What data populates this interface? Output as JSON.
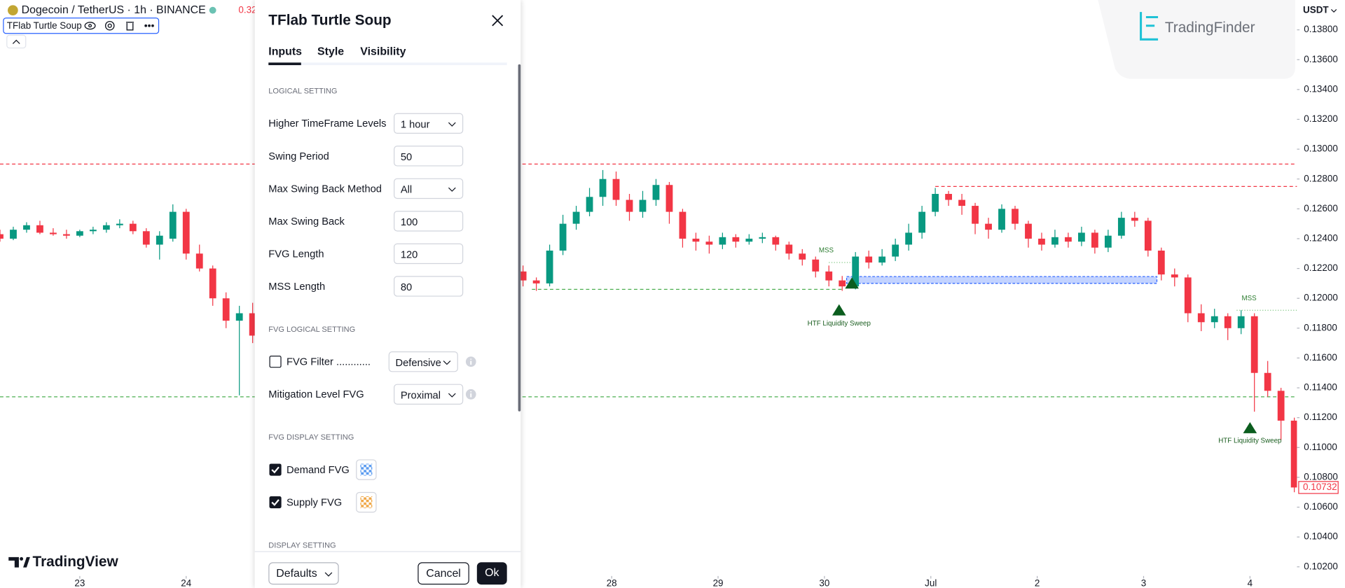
{
  "header": {
    "symbol": "Dogecoin / TetherUS · 1h · BINANCE",
    "price_peek": "0.32",
    "indicator": "TFlab Turtle Soup"
  },
  "watermarks": {
    "tradingview": "TradingView",
    "tradingfinder": "TradingFinder"
  },
  "chart": {
    "currency": "USDT",
    "ylim": [
      0.1015,
      0.14
    ],
    "yticks": [
      {
        "value": 0.102,
        "label": "0.10200"
      },
      {
        "value": 0.104,
        "label": "0.10400"
      },
      {
        "value": 0.106,
        "label": "0.10600"
      },
      {
        "value": 0.108,
        "label": "0.10800"
      },
      {
        "value": 0.11,
        "label": "0.11000"
      },
      {
        "value": 0.112,
        "label": "0.11200"
      },
      {
        "value": 0.114,
        "label": "0.11400"
      },
      {
        "value": 0.116,
        "label": "0.11600"
      },
      {
        "value": 0.118,
        "label": "0.11800"
      },
      {
        "value": 0.12,
        "label": "0.12000"
      },
      {
        "value": 0.122,
        "label": "0.12200"
      },
      {
        "value": 0.124,
        "label": "0.12400"
      },
      {
        "value": 0.126,
        "label": "0.12600"
      },
      {
        "value": 0.128,
        "label": "0.12800"
      },
      {
        "value": 0.13,
        "label": "0.13000"
      },
      {
        "value": 0.132,
        "label": "0.13200"
      },
      {
        "value": 0.134,
        "label": "0.13400"
      },
      {
        "value": 0.136,
        "label": "0.13600"
      },
      {
        "value": 0.138,
        "label": "0.13800"
      }
    ],
    "xlim": [
      -18,
      274.6
    ],
    "xticks": [
      {
        "value": 0,
        "label": "23"
      },
      {
        "value": 24,
        "label": "24"
      },
      {
        "value": 120,
        "label": "28"
      },
      {
        "value": 144,
        "label": "29"
      },
      {
        "value": 168,
        "label": "30"
      },
      {
        "value": 192,
        "label": "Jul"
      },
      {
        "value": 216,
        "label": "2"
      },
      {
        "value": 240,
        "label": "3"
      },
      {
        "value": 264,
        "label": "4"
      }
    ],
    "up_color": "#089981",
    "down_color": "#f23645",
    "x": [
      -18,
      -15,
      -12,
      -9,
      -6,
      -3,
      0,
      3,
      6,
      9,
      12,
      15,
      18,
      21,
      24,
      27,
      30,
      33,
      36,
      39,
      100,
      103,
      106,
      109,
      112,
      115,
      118,
      121,
      124,
      127,
      130,
      133,
      136,
      139,
      142,
      145,
      148,
      151,
      154,
      157,
      160,
      163,
      166,
      169,
      172,
      175,
      178,
      181,
      184,
      187,
      190,
      193,
      196,
      199,
      202,
      205,
      208,
      211,
      214,
      217,
      220,
      223,
      226,
      229,
      232,
      235,
      238,
      241,
      244,
      247,
      250,
      253,
      256,
      259,
      262,
      265,
      268,
      271,
      274
    ],
    "ohlc": [
      [
        0.1243,
        0.1246,
        0.1238,
        0.124
      ],
      [
        0.124,
        0.1248,
        0.1239,
        0.1246
      ],
      [
        0.1246,
        0.1251,
        0.1244,
        0.1249
      ],
      [
        0.1249,
        0.1252,
        0.1243,
        0.1244
      ],
      [
        0.1244,
        0.1247,
        0.1242,
        0.1243
      ],
      [
        0.1243,
        0.1246,
        0.124,
        0.1242
      ],
      [
        0.1242,
        0.1246,
        0.1241,
        0.1245
      ],
      [
        0.1245,
        0.1248,
        0.1243,
        0.1246
      ],
      [
        0.1246,
        0.1251,
        0.1244,
        0.1249
      ],
      [
        0.1249,
        0.1253,
        0.1247,
        0.125
      ],
      [
        0.125,
        0.1252,
        0.1243,
        0.1245
      ],
      [
        0.1245,
        0.1247,
        0.1234,
        0.1236
      ],
      [
        0.1236,
        0.1245,
        0.1226,
        0.1242
      ],
      [
        0.124,
        0.1263,
        0.1238,
        0.1258
      ],
      [
        0.1258,
        0.126,
        0.1226,
        0.123
      ],
      [
        0.123,
        0.1236,
        0.1218,
        0.122
      ],
      [
        0.122,
        0.1222,
        0.1195,
        0.12
      ],
      [
        0.12,
        0.1204,
        0.118,
        0.1185
      ],
      [
        0.1185,
        0.1195,
        0.1135,
        0.119
      ],
      [
        0.119,
        0.1197,
        0.117,
        0.1175
      ],
      [
        0.1218,
        0.1222,
        0.1208,
        0.1212
      ],
      [
        0.1212,
        0.1214,
        0.1205,
        0.121
      ],
      [
        0.121,
        0.1236,
        0.1208,
        0.1232
      ],
      [
        0.1232,
        0.1256,
        0.1229,
        0.125
      ],
      [
        0.125,
        0.1262,
        0.1246,
        0.1258
      ],
      [
        0.1258,
        0.1274,
        0.1255,
        0.1268
      ],
      [
        0.1268,
        0.1286,
        0.1262,
        0.128
      ],
      [
        0.128,
        0.1285,
        0.1262,
        0.1266
      ],
      [
        0.1266,
        0.127,
        0.1252,
        0.1258
      ],
      [
        0.1258,
        0.1272,
        0.1254,
        0.1266
      ],
      [
        0.1266,
        0.128,
        0.1262,
        0.1276
      ],
      [
        0.1276,
        0.1278,
        0.125,
        0.1258
      ],
      [
        0.1258,
        0.126,
        0.1234,
        0.124
      ],
      [
        0.124,
        0.1244,
        0.1232,
        0.1238
      ],
      [
        0.1238,
        0.1242,
        0.123,
        0.1236
      ],
      [
        0.1236,
        0.1244,
        0.1233,
        0.1241
      ],
      [
        0.1241,
        0.1243,
        0.1234,
        0.1238
      ],
      [
        0.1238,
        0.1243,
        0.1236,
        0.124
      ],
      [
        0.124,
        0.1244,
        0.1237,
        0.1241
      ],
      [
        0.1241,
        0.1242,
        0.1232,
        0.1236
      ],
      [
        0.1236,
        0.1238,
        0.1226,
        0.123
      ],
      [
        0.123,
        0.1233,
        0.1222,
        0.1226
      ],
      [
        0.1226,
        0.1228,
        0.1214,
        0.1218
      ],
      [
        0.1218,
        0.1222,
        0.1208,
        0.1212
      ],
      [
        0.1212,
        0.1215,
        0.1205,
        0.1208
      ],
      [
        0.1208,
        0.1231,
        0.1206,
        0.1228
      ],
      [
        0.1228,
        0.1232,
        0.122,
        0.1224
      ],
      [
        0.1224,
        0.1233,
        0.1222,
        0.1228
      ],
      [
        0.1228,
        0.124,
        0.1225,
        0.1236
      ],
      [
        0.1236,
        0.125,
        0.1232,
        0.1244
      ],
      [
        0.1244,
        0.1262,
        0.124,
        0.1258
      ],
      [
        0.1258,
        0.1274,
        0.1255,
        0.127
      ],
      [
        0.127,
        0.1272,
        0.1262,
        0.1266
      ],
      [
        0.1266,
        0.127,
        0.1256,
        0.1262
      ],
      [
        0.1262,
        0.1264,
        0.1243,
        0.125
      ],
      [
        0.125,
        0.1254,
        0.124,
        0.1246
      ],
      [
        0.1246,
        0.1263,
        0.1244,
        0.126
      ],
      [
        0.126,
        0.1262,
        0.1246,
        0.125
      ],
      [
        0.125,
        0.1252,
        0.1234,
        0.124
      ],
      [
        0.124,
        0.1244,
        0.1232,
        0.1236
      ],
      [
        0.1236,
        0.1246,
        0.1234,
        0.1241
      ],
      [
        0.1241,
        0.1244,
        0.1234,
        0.1238
      ],
      [
        0.1238,
        0.1248,
        0.1235,
        0.1244
      ],
      [
        0.1244,
        0.1246,
        0.123,
        0.1234
      ],
      [
        0.1234,
        0.1246,
        0.1231,
        0.1242
      ],
      [
        0.1242,
        0.1258,
        0.124,
        0.1254
      ],
      [
        0.1254,
        0.1258,
        0.1248,
        0.1252
      ],
      [
        0.1252,
        0.1254,
        0.1228,
        0.1232
      ],
      [
        0.1232,
        0.1234,
        0.1212,
        0.1216
      ],
      [
        0.1216,
        0.122,
        0.1208,
        0.1214
      ],
      [
        0.1214,
        0.1216,
        0.1184,
        0.119
      ],
      [
        0.119,
        0.1196,
        0.1178,
        0.1184
      ],
      [
        0.1184,
        0.1193,
        0.118,
        0.1188
      ],
      [
        0.1188,
        0.119,
        0.1172,
        0.118
      ],
      [
        0.118,
        0.1192,
        0.1176,
        0.1188
      ],
      [
        0.1188,
        0.119,
        0.1124,
        0.115
      ],
      [
        0.115,
        0.1158,
        0.1134,
        0.1138
      ],
      [
        0.1138,
        0.114,
        0.1105,
        0.1118
      ],
      [
        0.1118,
        0.112,
        0.107,
        0.10732
      ]
    ],
    "levels": [
      {
        "value": 0.129,
        "color": "#f23645",
        "style": "dashed"
      },
      {
        "value": 0.1275,
        "start": 193,
        "color": "#f23645",
        "style": "dashed"
      },
      {
        "value": 0.1206,
        "start": 102,
        "end": 172,
        "color": "#4caf50",
        "style": "dashed"
      },
      {
        "value": 0.1134,
        "color": "#4caf50",
        "style": "dashed"
      },
      {
        "value": 0.1224,
        "start": 169,
        "end": 176,
        "color": "#81c784",
        "style": "dotted"
      },
      {
        "value": 0.1192,
        "start": 261,
        "color": "#81c784",
        "style": "dotted"
      }
    ],
    "fvg": {
      "top": 0.12146,
      "bottom": 0.121,
      "start": 173,
      "end": 243,
      "color": "#2962ff"
    },
    "signals": [
      {
        "x": 171.3,
        "price": 0.1192,
        "color": "#0b5d1e"
      },
      {
        "x": 174.2,
        "price": 0.121,
        "color": "#0b5d1e"
      },
      {
        "x": 264,
        "price": 0.1113,
        "color": "#0b5d1e"
      }
    ],
    "annotations": [
      {
        "text": "MSS",
        "x": 168.4,
        "price": 0.1232,
        "color": "#2e7d32"
      },
      {
        "text": "HTF Liquidity Sweep",
        "x": 171.3,
        "price": 0.1183,
        "color": "#1b5e20"
      },
      {
        "text": "MSS",
        "x": 263.8,
        "price": 0.12,
        "color": "#2e7d32"
      },
      {
        "text": "HTF Liquidity Sweep",
        "x": 264,
        "price": 0.11044,
        "color": "#1b5e20"
      }
    ],
    "last_price": {
      "value": 0.10732,
      "label": "0.10732",
      "color": "#f23645"
    }
  },
  "dialog": {
    "title": "TFlab Turtle Soup",
    "tabs": [
      "Inputs",
      "Style",
      "Visibility"
    ],
    "sections": [
      {
        "heading": "LOGICAL SETTING",
        "fields": [
          {
            "label": "Higher TimeFrame Levels",
            "value": "1 hour",
            "control": "select"
          },
          {
            "label": "Swing Period",
            "value": 50,
            "control": "input"
          },
          {
            "label": "Max Swing Back Method",
            "value": "All",
            "control": "select"
          },
          {
            "label": "Max Swing Back",
            "value": 100,
            "control": "input"
          },
          {
            "label": "FVG Length",
            "value": 120,
            "control": "input"
          },
          {
            "label": "MSS Length",
            "value": 80,
            "control": "input"
          }
        ]
      },
      {
        "heading": "FVG LOGICAL SETTING",
        "fields": [
          {
            "label": "FVG Filter ............",
            "checked": false,
            "value": "Defensive",
            "control": "select",
            "info": true
          },
          {
            "label": "Mitigation Level FVG",
            "value": "Proximal",
            "control": "select",
            "info": true
          }
        ]
      },
      {
        "heading": "FVG DISPLAY SETTING",
        "fields": [
          {
            "label": "Demand FVG",
            "checked": true,
            "swatch": "#5b9cf0"
          },
          {
            "label": "Supply FVG",
            "checked": true,
            "swatch": "#f0a848"
          }
        ]
      },
      {
        "heading": "DISPLAY SETTING",
        "fields": []
      }
    ],
    "footer": {
      "defaults": "Defaults",
      "cancel": "Cancel",
      "ok": "Ok"
    }
  }
}
